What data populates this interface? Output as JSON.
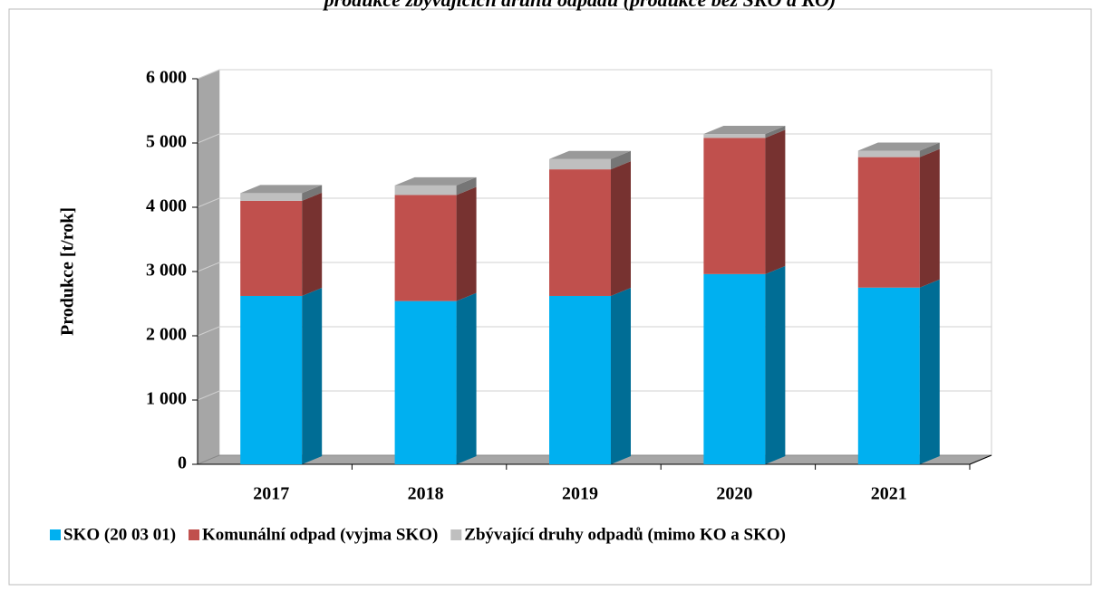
{
  "chart_data": {
    "type": "bar3d-stacked",
    "title": "produkce zbývajících druhů odpadů (produkce bez SKO a KO)",
    "y_label": "Produkce [t/rok]",
    "categories": [
      "2017",
      "2018",
      "2019",
      "2020",
      "2021"
    ],
    "series": [
      {
        "name": "SKO (20 03 01)",
        "color": "#00b0f0",
        "values": [
          2620,
          2540,
          2620,
          2960,
          2750
        ]
      },
      {
        "name": "Komunální odpad (vyjma SKO)",
        "color": "#c0504d",
        "values": [
          1480,
          1650,
          1970,
          2120,
          2030
        ]
      },
      {
        "name": "Zbývající druhy odpadů (mimo KO a SKO)",
        "color": "#bfbfbf",
        "values": [
          120,
          150,
          160,
          60,
          100
        ]
      }
    ],
    "ylim": [
      0,
      6000
    ],
    "yticks": [
      {
        "value": 0,
        "label": "0"
      },
      {
        "value": 1000,
        "label": "1 000"
      },
      {
        "value": 2000,
        "label": "2 000"
      },
      {
        "value": 3000,
        "label": "3 000"
      },
      {
        "value": 4000,
        "label": "4 000"
      },
      {
        "value": 5000,
        "label": "5 000"
      },
      {
        "value": 6000,
        "label": "6 000"
      }
    ],
    "grid": true
  }
}
